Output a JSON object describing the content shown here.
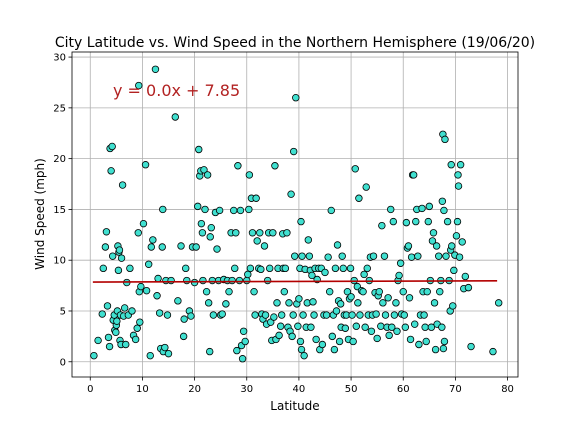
{
  "chart_data": {
    "type": "scatter",
    "title": "City Latitude vs. Wind Speed in the Northern Hemisphere (19/06/20)",
    "xlabel": "Latitude",
    "ylabel": "Wind Speed (mph)",
    "xlim": [
      -3.5,
      82
    ],
    "ylim": [
      -1.5,
      30.5
    ],
    "x_ticks": [
      0,
      10,
      20,
      30,
      40,
      50,
      60,
      70,
      80
    ],
    "y_ticks": [
      0,
      5,
      10,
      15,
      20,
      25,
      30
    ],
    "grid": true,
    "annotation": "y = 0.0x + 7.85",
    "regression": {
      "slope": 0.0015,
      "intercept": 7.85,
      "x_range": [
        0.5,
        78
      ]
    },
    "colors": {
      "point_fill": "#40e0d0",
      "point_edge": "#000000",
      "regression_line": "#b30000",
      "annotation": "#b22222",
      "grid": "#b0b0b0"
    },
    "points": [
      [
        0.7,
        0.6
      ],
      [
        1.5,
        2.1
      ],
      [
        2.3,
        4.7
      ],
      [
        2.5,
        9.2
      ],
      [
        2.9,
        11.3
      ],
      [
        3.1,
        12.8
      ],
      [
        3.3,
        5.5
      ],
      [
        3.5,
        2.4
      ],
      [
        3.7,
        1.5
      ],
      [
        3.8,
        21.0
      ],
      [
        4.0,
        18.8
      ],
      [
        4.2,
        21.2
      ],
      [
        4.3,
        10.4
      ],
      [
        4.4,
        4.1
      ],
      [
        4.6,
        4.6
      ],
      [
        4.7,
        3.1
      ],
      [
        4.9,
        2.9
      ],
      [
        5.0,
        3.6
      ],
      [
        5.1,
        4.0
      ],
      [
        5.2,
        5.0
      ],
      [
        5.3,
        11.4
      ],
      [
        5.4,
        9.0
      ],
      [
        5.5,
        10.8
      ],
      [
        5.6,
        11.0
      ],
      [
        5.7,
        2.1
      ],
      [
        5.8,
        4.6
      ],
      [
        5.9,
        1.7
      ],
      [
        6.0,
        10.2
      ],
      [
        6.2,
        17.4
      ],
      [
        6.4,
        4.5
      ],
      [
        6.6,
        5.3
      ],
      [
        6.8,
        1.7
      ],
      [
        7.0,
        7.8
      ],
      [
        7.3,
        4.6
      ],
      [
        7.6,
        9.2
      ],
      [
        8.0,
        5.0
      ],
      [
        8.3,
        2.6
      ],
      [
        8.7,
        2.2
      ],
      [
        9.0,
        3.3
      ],
      [
        9.2,
        12.7
      ],
      [
        9.3,
        27.2
      ],
      [
        9.4,
        6.9
      ],
      [
        9.5,
        3.9
      ],
      [
        9.7,
        7.4
      ],
      [
        10.2,
        13.6
      ],
      [
        10.6,
        19.4
      ],
      [
        10.8,
        7.0
      ],
      [
        11.2,
        9.6
      ],
      [
        11.5,
        0.6
      ],
      [
        11.7,
        11.3
      ],
      [
        12.0,
        12.0
      ],
      [
        12.5,
        28.8
      ],
      [
        12.8,
        6.5
      ],
      [
        13.0,
        8.2
      ],
      [
        13.3,
        4.8
      ],
      [
        13.5,
        1.3
      ],
      [
        13.8,
        11.3
      ],
      [
        13.9,
        15.0
      ],
      [
        14.0,
        1.0
      ],
      [
        14.3,
        1.4
      ],
      [
        14.5,
        8.0
      ],
      [
        14.8,
        4.6
      ],
      [
        15.0,
        0.8
      ],
      [
        15.5,
        8.0
      ],
      [
        16.3,
        24.1
      ],
      [
        16.8,
        6.0
      ],
      [
        17.4,
        11.4
      ],
      [
        17.9,
        2.5
      ],
      [
        18.0,
        4.2
      ],
      [
        18.3,
        9.2
      ],
      [
        18.5,
        8.0
      ],
      [
        19.0,
        5.0
      ],
      [
        19.3,
        4.5
      ],
      [
        19.6,
        11.3
      ],
      [
        20.0,
        7.8
      ],
      [
        20.3,
        11.3
      ],
      [
        20.6,
        15.3
      ],
      [
        20.8,
        20.9
      ],
      [
        21.0,
        18.3
      ],
      [
        21.2,
        18.8
      ],
      [
        21.3,
        13.6
      ],
      [
        21.5,
        12.7
      ],
      [
        21.6,
        8.0
      ],
      [
        21.8,
        18.9
      ],
      [
        22.0,
        15.0
      ],
      [
        22.3,
        6.9
      ],
      [
        22.5,
        18.4
      ],
      [
        22.7,
        5.8
      ],
      [
        22.9,
        1.0
      ],
      [
        23.0,
        12.3
      ],
      [
        23.2,
        13.2
      ],
      [
        23.4,
        8.0
      ],
      [
        23.6,
        4.6
      ],
      [
        24.0,
        14.7
      ],
      [
        24.3,
        11.1
      ],
      [
        24.6,
        8.0
      ],
      [
        24.8,
        14.9
      ],
      [
        25.0,
        4.6
      ],
      [
        25.3,
        4.7
      ],
      [
        25.6,
        8.1
      ],
      [
        26.0,
        5.7
      ],
      [
        26.3,
        8.0
      ],
      [
        26.6,
        6.9
      ],
      [
        27.0,
        12.7
      ],
      [
        27.2,
        8.0
      ],
      [
        27.5,
        14.9
      ],
      [
        27.7,
        9.2
      ],
      [
        27.9,
        12.7
      ],
      [
        28.1,
        1.1
      ],
      [
        28.3,
        19.3
      ],
      [
        28.6,
        8.0
      ],
      [
        28.8,
        14.9
      ],
      [
        29.0,
        1.6
      ],
      [
        29.2,
        0.3
      ],
      [
        29.4,
        3.0
      ],
      [
        29.7,
        2.0
      ],
      [
        30.0,
        8.0
      ],
      [
        30.2,
        8.6
      ],
      [
        30.4,
        15.0
      ],
      [
        30.5,
        18.4
      ],
      [
        30.7,
        9.2
      ],
      [
        30.9,
        16.1
      ],
      [
        31.1,
        12.7
      ],
      [
        31.4,
        6.9
      ],
      [
        31.6,
        4.6
      ],
      [
        31.8,
        16.1
      ],
      [
        32.0,
        11.9
      ],
      [
        32.3,
        9.2
      ],
      [
        32.5,
        12.7
      ],
      [
        32.7,
        9.1
      ],
      [
        32.9,
        4.7
      ],
      [
        33.1,
        4.2
      ],
      [
        33.4,
        11.4
      ],
      [
        33.6,
        4.6
      ],
      [
        33.8,
        3.7
      ],
      [
        34.0,
        8.0
      ],
      [
        34.2,
        12.7
      ],
      [
        34.4,
        9.2
      ],
      [
        34.6,
        3.9
      ],
      [
        34.8,
        2.1
      ],
      [
        35.0,
        12.7
      ],
      [
        35.2,
        4.4
      ],
      [
        35.4,
        19.3
      ],
      [
        35.6,
        2.2
      ],
      [
        35.8,
        5.8
      ],
      [
        36.0,
        9.2
      ],
      [
        36.2,
        2.6
      ],
      [
        36.5,
        3.5
      ],
      [
        36.7,
        4.6
      ],
      [
        36.9,
        12.6
      ],
      [
        37.0,
        9.2
      ],
      [
        37.2,
        6.9
      ],
      [
        37.4,
        9.2
      ],
      [
        37.7,
        12.7
      ],
      [
        37.9,
        3.4
      ],
      [
        38.1,
        5.8
      ],
      [
        38.3,
        3.0
      ],
      [
        38.5,
        16.5
      ],
      [
        38.7,
        2.5
      ],
      [
        38.9,
        4.6
      ],
      [
        39.0,
        20.7
      ],
      [
        39.2,
        10.4
      ],
      [
        39.4,
        26.0
      ],
      [
        39.6,
        5.7
      ],
      [
        39.8,
        3.5
      ],
      [
        40.0,
        6.2
      ],
      [
        40.2,
        9.2
      ],
      [
        40.3,
        2.0
      ],
      [
        40.4,
        13.8
      ],
      [
        40.5,
        1.2
      ],
      [
        40.6,
        10.4
      ],
      [
        40.8,
        4.6
      ],
      [
        41.0,
        0.6
      ],
      [
        41.2,
        9.1
      ],
      [
        41.4,
        3.4
      ],
      [
        41.6,
        5.8
      ],
      [
        41.8,
        12.0
      ],
      [
        42.0,
        10.4
      ],
      [
        42.2,
        9.0
      ],
      [
        42.3,
        3.4
      ],
      [
        42.5,
        8.5
      ],
      [
        42.7,
        5.9
      ],
      [
        42.9,
        4.6
      ],
      [
        43.1,
        9.2
      ],
      [
        43.3,
        2.2
      ],
      [
        43.5,
        8.1
      ],
      [
        43.8,
        9.2
      ],
      [
        44.0,
        1.2
      ],
      [
        44.3,
        9.2
      ],
      [
        44.5,
        1.7
      ],
      [
        44.8,
        4.6
      ],
      [
        45.0,
        8.8
      ],
      [
        45.3,
        4.6
      ],
      [
        45.6,
        10.3
      ],
      [
        45.9,
        6.9
      ],
      [
        46.2,
        14.9
      ],
      [
        46.4,
        2.5
      ],
      [
        46.6,
        4.6
      ],
      [
        46.8,
        1.2
      ],
      [
        47.0,
        9.2
      ],
      [
        47.2,
        5.0
      ],
      [
        47.4,
        11.5
      ],
      [
        47.6,
        6.0
      ],
      [
        47.8,
        2.0
      ],
      [
        48.0,
        5.7
      ],
      [
        48.1,
        3.4
      ],
      [
        48.3,
        10.4
      ],
      [
        48.5,
        9.2
      ],
      [
        48.7,
        4.6
      ],
      [
        48.9,
        3.3
      ],
      [
        49.1,
        4.6
      ],
      [
        49.3,
        6.9
      ],
      [
        49.5,
        2.2
      ],
      [
        49.7,
        6.2
      ],
      [
        49.9,
        9.2
      ],
      [
        50.0,
        6.4
      ],
      [
        50.2,
        4.6
      ],
      [
        50.4,
        2.0
      ],
      [
        50.6,
        8.0
      ],
      [
        50.8,
        19.0
      ],
      [
        51.0,
        3.5
      ],
      [
        51.2,
        7.4
      ],
      [
        51.3,
        5.8
      ],
      [
        51.5,
        16.1
      ],
      [
        51.7,
        4.6
      ],
      [
        52.0,
        7.0
      ],
      [
        52.3,
        6.9
      ],
      [
        52.5,
        8.6
      ],
      [
        52.7,
        3.4
      ],
      [
        52.9,
        17.2
      ],
      [
        53.1,
        9.2
      ],
      [
        53.3,
        4.6
      ],
      [
        53.5,
        8.0
      ],
      [
        53.7,
        10.3
      ],
      [
        53.9,
        3.0
      ],
      [
        54.1,
        4.6
      ],
      [
        54.3,
        10.4
      ],
      [
        54.6,
        6.8
      ],
      [
        54.8,
        4.7
      ],
      [
        55.0,
        2.3
      ],
      [
        55.2,
        6.5
      ],
      [
        55.4,
        6.9
      ],
      [
        55.7,
        3.5
      ],
      [
        55.9,
        13.4
      ],
      [
        56.1,
        5.8
      ],
      [
        56.4,
        10.4
      ],
      [
        56.6,
        4.6
      ],
      [
        56.9,
        3.4
      ],
      [
        57.1,
        6.3
      ],
      [
        57.3,
        2.6
      ],
      [
        57.6,
        15.0
      ],
      [
        57.8,
        3.4
      ],
      [
        58.1,
        13.8
      ],
      [
        58.3,
        4.6
      ],
      [
        58.6,
        5.8
      ],
      [
        58.8,
        3.0
      ],
      [
        59.0,
        8.0
      ],
      [
        59.2,
        8.5
      ],
      [
        59.5,
        9.7
      ],
      [
        59.7,
        4.7
      ],
      [
        60.0,
        6.9
      ],
      [
        60.2,
        4.6
      ],
      [
        60.4,
        3.4
      ],
      [
        60.6,
        13.7
      ],
      [
        60.8,
        11.2
      ],
      [
        61.0,
        11.4
      ],
      [
        61.2,
        6.3
      ],
      [
        61.4,
        2.2
      ],
      [
        61.6,
        10.3
      ],
      [
        61.8,
        18.4
      ],
      [
        62.0,
        18.4
      ],
      [
        62.2,
        3.7
      ],
      [
        62.4,
        13.8
      ],
      [
        62.6,
        15.0
      ],
      [
        62.8,
        10.4
      ],
      [
        63.0,
        1.7
      ],
      [
        63.3,
        4.6
      ],
      [
        63.6,
        15.1
      ],
      [
        63.8,
        6.9
      ],
      [
        64.0,
        4.6
      ],
      [
        64.2,
        3.4
      ],
      [
        64.4,
        2.0
      ],
      [
        64.6,
        6.9
      ],
      [
        64.8,
        13.8
      ],
      [
        65.0,
        15.3
      ],
      [
        65.2,
        8.0
      ],
      [
        65.4,
        3.4
      ],
      [
        65.6,
        11.9
      ],
      [
        65.8,
        12.7
      ],
      [
        66.0,
        5.8
      ],
      [
        66.2,
        1.2
      ],
      [
        66.4,
        11.4
      ],
      [
        66.5,
        3.7
      ],
      [
        66.8,
        10.4
      ],
      [
        67.0,
        6.9
      ],
      [
        67.2,
        8.0
      ],
      [
        67.4,
        3.4
      ],
      [
        67.5,
        15.8
      ],
      [
        67.6,
        22.4
      ],
      [
        67.7,
        1.3
      ],
      [
        67.8,
        14.9
      ],
      [
        67.9,
        2.0
      ],
      [
        68.0,
        21.9
      ],
      [
        68.2,
        10.4
      ],
      [
        68.5,
        13.8
      ],
      [
        68.8,
        8.0
      ],
      [
        69.0,
        5.0
      ],
      [
        69.1,
        11.0
      ],
      [
        69.2,
        19.4
      ],
      [
        69.3,
        11.4
      ],
      [
        69.5,
        5.5
      ],
      [
        69.7,
        9.0
      ],
      [
        69.9,
        10.5
      ],
      [
        70.2,
        12.4
      ],
      [
        70.4,
        13.8
      ],
      [
        70.5,
        18.4
      ],
      [
        70.6,
        17.3
      ],
      [
        70.8,
        10.3
      ],
      [
        71.0,
        19.4
      ],
      [
        71.3,
        11.8
      ],
      [
        71.6,
        7.2
      ],
      [
        71.9,
        8.4
      ],
      [
        72.5,
        7.3
      ],
      [
        73.0,
        1.5
      ],
      [
        77.2,
        1.0
      ],
      [
        78.3,
        5.8
      ]
    ]
  }
}
